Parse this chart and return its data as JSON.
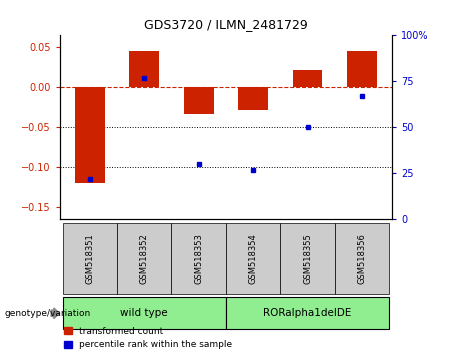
{
  "title": "GDS3720 / ILMN_2481729",
  "samples": [
    "GSM518351",
    "GSM518352",
    "GSM518353",
    "GSM518354",
    "GSM518355",
    "GSM518356"
  ],
  "red_values": [
    -0.12,
    0.045,
    -0.033,
    -0.028,
    0.022,
    0.046
  ],
  "blue_values": [
    22,
    77,
    30,
    27,
    50,
    67
  ],
  "ylim_left": [
    -0.165,
    0.065
  ],
  "ylim_right": [
    0,
    100
  ],
  "yticks_left": [
    0.05,
    0.0,
    -0.05,
    -0.1,
    -0.15
  ],
  "yticks_right": [
    100,
    75,
    50,
    25,
    0
  ],
  "ytick_right_labels": [
    "100%",
    "75",
    "50",
    "25",
    "0"
  ],
  "red_color": "#CC2200",
  "blue_color": "#0000CC",
  "bar_width": 0.55,
  "hline0_color": "#CC2200",
  "hline_dot_color": "#000000",
  "legend_red": "transformed count",
  "legend_blue": "percentile rank within the sample",
  "genotype_label": "genotype/variation",
  "group1_label": "wild type",
  "group2_label": "RORalpha1delDE",
  "group_color": "#90EE90",
  "sample_box_color": "#CCCCCC",
  "title_fontsize": 9,
  "tick_fontsize": 7,
  "label_fontsize": 7
}
